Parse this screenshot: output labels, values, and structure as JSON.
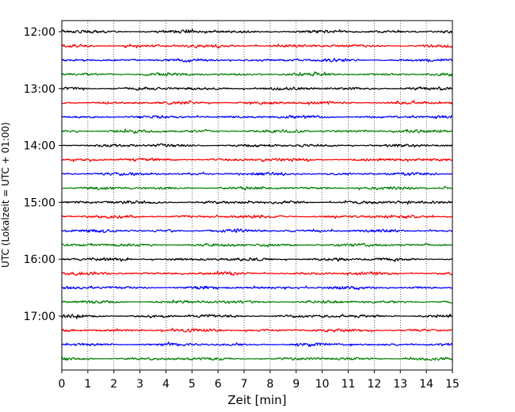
{
  "chart_data": {
    "type": "line",
    "title": "",
    "xlabel": "Zeit  [min]",
    "ylabel": "UTC (Lokalzeit = UTC + 01:00)",
    "xlim": [
      0,
      15
    ],
    "x_ticks": [
      "0",
      "1",
      "2",
      "3",
      "4",
      "5",
      "6",
      "7",
      "8",
      "9",
      "10",
      "11",
      "12",
      "13",
      "14",
      "15"
    ],
    "y_ticks": [
      "12:00",
      "13:00",
      "14:00",
      "15:00",
      "16:00",
      "17:00"
    ],
    "grid": "vertical-dotted",
    "series_colors": [
      "#000000",
      "#ff0000",
      "#0000ff",
      "#008000"
    ],
    "traces": [
      {
        "start": "12:00",
        "color": "#000000"
      },
      {
        "start": "12:15",
        "color": "#ff0000"
      },
      {
        "start": "12:30",
        "color": "#0000ff"
      },
      {
        "start": "12:45",
        "color": "#008000"
      },
      {
        "start": "13:00",
        "color": "#000000"
      },
      {
        "start": "13:15",
        "color": "#ff0000"
      },
      {
        "start": "13:30",
        "color": "#0000ff"
      },
      {
        "start": "13:45",
        "color": "#008000"
      },
      {
        "start": "14:00",
        "color": "#000000"
      },
      {
        "start": "14:15",
        "color": "#ff0000"
      },
      {
        "start": "14:30",
        "color": "#0000ff"
      },
      {
        "start": "14:45",
        "color": "#008000"
      },
      {
        "start": "15:00",
        "color": "#000000"
      },
      {
        "start": "15:15",
        "color": "#ff0000"
      },
      {
        "start": "15:30",
        "color": "#0000ff"
      },
      {
        "start": "15:45",
        "color": "#008000"
      },
      {
        "start": "16:00",
        "color": "#000000"
      },
      {
        "start": "16:15",
        "color": "#ff0000"
      },
      {
        "start": "16:30",
        "color": "#0000ff"
      },
      {
        "start": "16:45",
        "color": "#008000"
      },
      {
        "start": "17:00",
        "color": "#000000"
      },
      {
        "start": "17:15",
        "color": "#ff0000"
      },
      {
        "start": "17:30",
        "color": "#0000ff"
      },
      {
        "start": "17:45",
        "color": "#008000"
      }
    ]
  }
}
